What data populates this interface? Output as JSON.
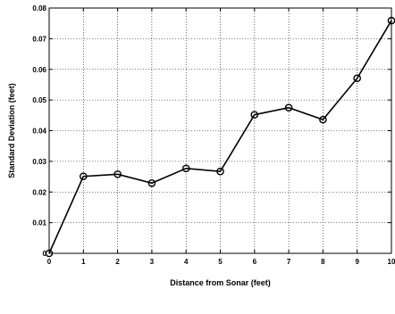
{
  "chart_data": {
    "type": "line",
    "title": "",
    "xlabel": "Distance from Sonar (feet)",
    "ylabel": "Standard Deviation (feet)",
    "xlim": [
      0,
      10
    ],
    "ylim": [
      0,
      0.08
    ],
    "grid": true,
    "xticks": [
      "0",
      "1",
      "2",
      "3",
      "4",
      "5",
      "6",
      "7",
      "8",
      "9",
      "10"
    ],
    "yticks": [
      "0",
      "0.01",
      "0.02",
      "0.03",
      "0.04",
      "0.05",
      "0.06",
      "0.07",
      "0.08"
    ],
    "series": [
      {
        "marker": "circle",
        "color": "#000000",
        "x": [
          0,
          1,
          2,
          3,
          4,
          5,
          6,
          7,
          8,
          9,
          10
        ],
        "y": [
          0,
          0.0251,
          0.0258,
          0.0229,
          0.0277,
          0.0267,
          0.0452,
          0.0475,
          0.0436,
          0.0571,
          0.0759
        ]
      }
    ]
  }
}
